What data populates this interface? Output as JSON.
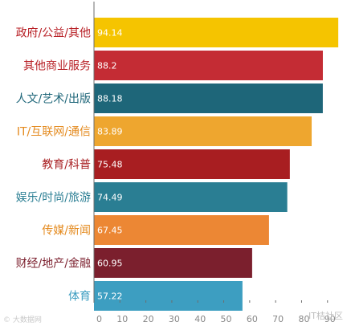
{
  "chart_data": {
    "type": "bar",
    "orientation": "horizontal",
    "categories": [
      "政府/公益/其他",
      "其他商业服务",
      "人文/艺术/出版",
      "IT/互联网/通信",
      "教育/科普",
      "娱乐/时尚/旅游",
      "传媒/新闻",
      "财经/地产/金融",
      "体育"
    ],
    "values": [
      94.14,
      88.2,
      88.18,
      83.89,
      75.48,
      74.49,
      67.45,
      60.95,
      57.22
    ],
    "value_labels": [
      "94.14",
      "88.2",
      "88.18",
      "83.89",
      "75.48",
      "74.49",
      "67.45",
      "60.95",
      "57.22"
    ],
    "colors": [
      "#f5c400",
      "#c42c34",
      "#1e6679",
      "#eea62f",
      "#a81e21",
      "#2a7e93",
      "#ec8734",
      "#7b1f2d",
      "#3d9ec1"
    ],
    "label_colors": [
      "#b82026",
      "#b82026",
      "#1e6679",
      "#e48a1e",
      "#a81e21",
      "#2a7e93",
      "#e48a1e",
      "#7b1f2d",
      "#3d9ec1"
    ],
    "x_ticks": [
      0,
      10,
      20,
      30,
      40,
      50,
      60,
      70,
      80,
      90
    ],
    "xlim": [
      0,
      97.5
    ],
    "title": "",
    "xlabel": "",
    "ylabel": "",
    "grid": false,
    "legend": "none"
  },
  "watermarks": {
    "left": "© 大数据网",
    "right": "IT桔社区"
  }
}
